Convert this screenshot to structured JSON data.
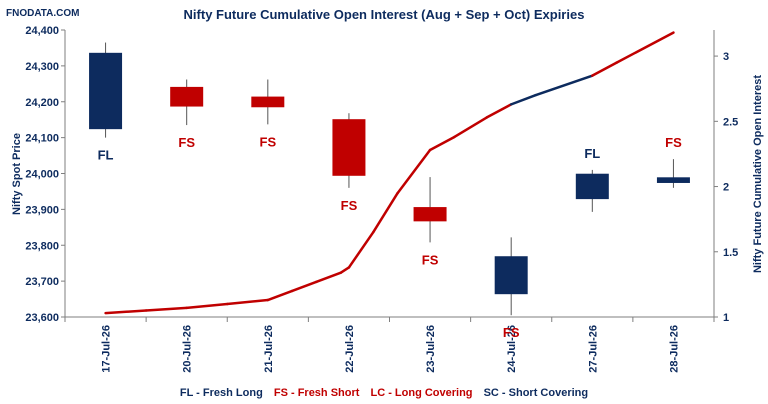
{
  "watermark": "FNODATA.COM",
  "legend": {
    "fl": "FL - Fresh Long",
    "fs": "FS - Fresh Short",
    "lc": "LC - Long Covering",
    "sc": "SC - Short Covering"
  },
  "colors": {
    "bullish": "#0d2b5e",
    "bearish": "#c00000",
    "text_dark": "#0d2b5e",
    "text_red": "#c00000"
  },
  "chart_data": {
    "type": "candlestick-line",
    "title": "Nifty Future Cumulative Open Interest (Aug + Sep + Oct) Expiries",
    "xlabel": "",
    "ylabel_left": "Nifty Spot Price",
    "ylabel_right": "Nifty Future Cumulative Open Interest",
    "categories": [
      "17-Jul-26",
      "20-Jul-26",
      "21-Jul-26",
      "22-Jul-26",
      "23-Jul-26",
      "24-Jul-26",
      "27-Jul-26",
      "28-Jul-26"
    ],
    "left_axis": {
      "min": 23600,
      "max": 24400,
      "ticks": [
        "23,600",
        "23,700",
        "23,800",
        "23,900",
        "24,000",
        "24,100",
        "24,200",
        "24,300",
        "24,400"
      ]
    },
    "right_axis": {
      "min": 1,
      "max": 3.2,
      "ticks": [
        "1",
        "1.5",
        "2",
        "2.5",
        "3"
      ]
    },
    "candles": [
      {
        "date": "17-Jul-26",
        "open": 24125,
        "close": 24335,
        "high": 24365,
        "low": 24100,
        "signal": "FL"
      },
      {
        "date": "20-Jul-26",
        "open": 24240,
        "close": 24188,
        "high": 24262,
        "low": 24135,
        "signal": "FS"
      },
      {
        "date": "21-Jul-26",
        "open": 24213,
        "close": 24186,
        "high": 24262,
        "low": 24137,
        "signal": "FS"
      },
      {
        "date": "22-Jul-26",
        "open": 24150,
        "close": 23995,
        "high": 24168,
        "low": 23960,
        "signal": "FS"
      },
      {
        "date": "23-Jul-26",
        "open": 23905,
        "close": 23868,
        "high": 23990,
        "low": 23808,
        "signal": "FS"
      },
      {
        "date": "24-Jul-26",
        "open": 23665,
        "close": 23768,
        "high": 23822,
        "low": 23605,
        "signal": "FS"
      },
      {
        "date": "27-Jul-26",
        "open": 23930,
        "close": 23998,
        "high": 24010,
        "low": 23893,
        "signal": "FL"
      },
      {
        "date": "28-Jul-26",
        "open": 23975,
        "close": 23988,
        "high": 24040,
        "low": 23960,
        "signal": "FS"
      }
    ],
    "open_interest": {
      "x": [
        0,
        0.5,
        1,
        1.5,
        2,
        2.3,
        2.6,
        2.9,
        3,
        3.3,
        3.6,
        4,
        4.3,
        4.7,
        5,
        5.3,
        6,
        6.3,
        7
      ],
      "y": [
        1.03,
        1.05,
        1.07,
        1.1,
        1.13,
        1.2,
        1.27,
        1.34,
        1.38,
        1.65,
        1.95,
        2.28,
        2.38,
        2.53,
        2.63,
        2.7,
        2.85,
        2.95,
        3.18
      ]
    }
  }
}
